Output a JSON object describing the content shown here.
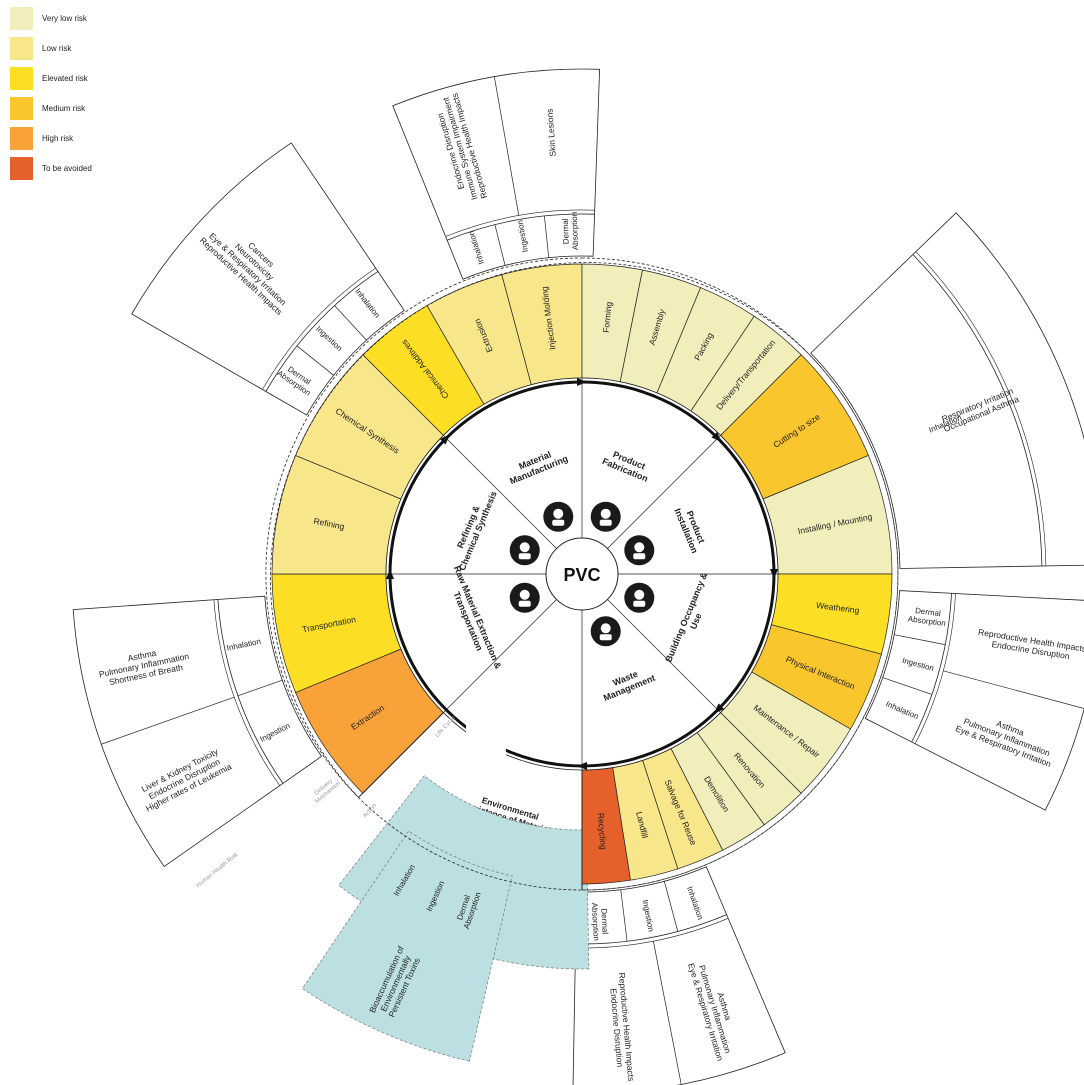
{
  "legend": [
    {
      "label": "Very low risk",
      "color": "#f1eebb"
    },
    {
      "label": "Low risk",
      "color": "#f7e68a"
    },
    {
      "label": "Elevated risk",
      "color": "#fcdf24"
    },
    {
      "label": "Medium risk",
      "color": "#f9c62e"
    },
    {
      "label": "High risk",
      "color": "#f8a239"
    },
    {
      "label": "To be avoided",
      "color": "#e5602a"
    }
  ],
  "center": {
    "title": "PVC"
  },
  "stages": [
    {
      "name": "Material Manufacturing",
      "icon": "worker-goggles-icon",
      "actions": [
        {
          "label": "Chemical Additives",
          "risk": "Elevated risk"
        },
        {
          "label": "Extrusion",
          "risk": "Low risk"
        },
        {
          "label": "Injection Molding",
          "risk": "Low risk"
        }
      ]
    },
    {
      "name": "Product Fabrication",
      "icon": "factory-robot-arm-icon",
      "actions": [
        {
          "label": "Forming",
          "risk": "Very low risk"
        },
        {
          "label": "Assembly",
          "risk": "Very low risk"
        },
        {
          "label": "Packing",
          "risk": "Very low risk"
        },
        {
          "label": "Delivery/Transportation",
          "risk": "Very low risk"
        }
      ]
    },
    {
      "name": "Product Installation",
      "icon": "construction-worker-icon",
      "actions": [
        {
          "label": "Cutting to size",
          "risk": "Medium risk"
        },
        {
          "label": "Installing / Mounting",
          "risk": "Very low risk"
        }
      ]
    },
    {
      "name": "Building Occupancy & Use",
      "icon": "occupants-family-icon",
      "actions": [
        {
          "label": "Weathering",
          "risk": "Elevated risk"
        },
        {
          "label": "Physical Interaction",
          "risk": "Medium risk"
        },
        {
          "label": "Maintenance / Repair",
          "risk": "Very low risk"
        }
      ]
    },
    {
      "name": "Waste Management",
      "icon": "trash-recycle-icon",
      "actions": [
        {
          "label": "Renovation",
          "risk": "Very low risk"
        },
        {
          "label": "Demolition",
          "risk": "Very low risk"
        },
        {
          "label": "Salvage for Reuse",
          "risk": "Low risk"
        },
        {
          "label": "Landfill",
          "risk": "Low risk"
        },
        {
          "label": "Recycling",
          "risk": "To be avoided"
        }
      ]
    },
    {
      "name": "Environmental Persistence of Materials",
      "icon": "",
      "actions": []
    },
    {
      "name": "Raw Material Extraction & Transportation",
      "icon": "excavator-icon",
      "actions": [
        {
          "label": "Extraction",
          "risk": "High risk"
        },
        {
          "label": "Transportation",
          "risk": "Elevated risk"
        }
      ]
    },
    {
      "name": "Refining & Chemical Synthesis",
      "icon": "flask-icon",
      "actions": [
        {
          "label": "Refining",
          "risk": "Low risk"
        },
        {
          "label": "Chemical Synthesis",
          "risk": "Low risk"
        }
      ]
    }
  ],
  "ring_labels": {
    "lifecycle": "Life Cycle",
    "delivery": "Delivery Mechanism",
    "action": "Action",
    "human_health": "Human Health Risk"
  },
  "outer_groups": [
    {
      "delivery": [
        "Inhalation",
        "Ingestion",
        "Dermal Absorption"
      ],
      "risks": [
        "Endocrine Disruption",
        "Immune System Impairment",
        "Reproductive Health Impacts"
      ],
      "risks2": [
        "Skin Lesions"
      ]
    },
    {
      "delivery": [
        "Inhalation"
      ],
      "risks": [
        "Respiratory Irritation",
        "Occupational Asthma"
      ]
    },
    {
      "delivery": [
        "Dermal Absorption",
        "Ingestion",
        "Inhalation"
      ],
      "risks": [
        "Reproductive Health Impacts",
        "Endocrine Disruption"
      ],
      "risks2": [
        "Asthma",
        "Pulmonary Inflammation",
        "Eye & Respiratory Irritation"
      ]
    },
    {
      "delivery": [
        "Inhalation",
        "Ingestion",
        "Dermal Absorption"
      ],
      "risks": [
        "Asthma",
        "Pulmonary Inflammation",
        "Eye & Respiratory Irritation"
      ],
      "risks2": [
        "Reproductive Health Impacts",
        "Endocrine Disruption"
      ]
    },
    {
      "delivery": [
        "Dermal Absorption",
        "Ingestion",
        "Inhalation"
      ],
      "risks": [
        "Bioaccumulation of",
        "Environmentally",
        "Persistent Toxins"
      ]
    },
    {
      "delivery": [
        "Ingestion",
        "Inhalation"
      ],
      "risks": [
        "Liver & Kidney Toxicity",
        "Endocrine Disruption",
        "Higher rates of Leukemia"
      ],
      "risks2": [
        "Asthma",
        "Pulmonary Inflammation",
        "Shortness of Breath"
      ]
    },
    {
      "delivery": [
        "Dermal Absorption",
        "Ingestion",
        "Inhalation"
      ],
      "risks": [
        "Cancers",
        "Neurotoxicity",
        "Eye & Respiratory Irritation",
        "Reproductive Health Impacts"
      ]
    }
  ],
  "colors": {
    "env_fill": "#bcdfe2",
    "stroke": "#222222",
    "arrow": "#111111"
  }
}
